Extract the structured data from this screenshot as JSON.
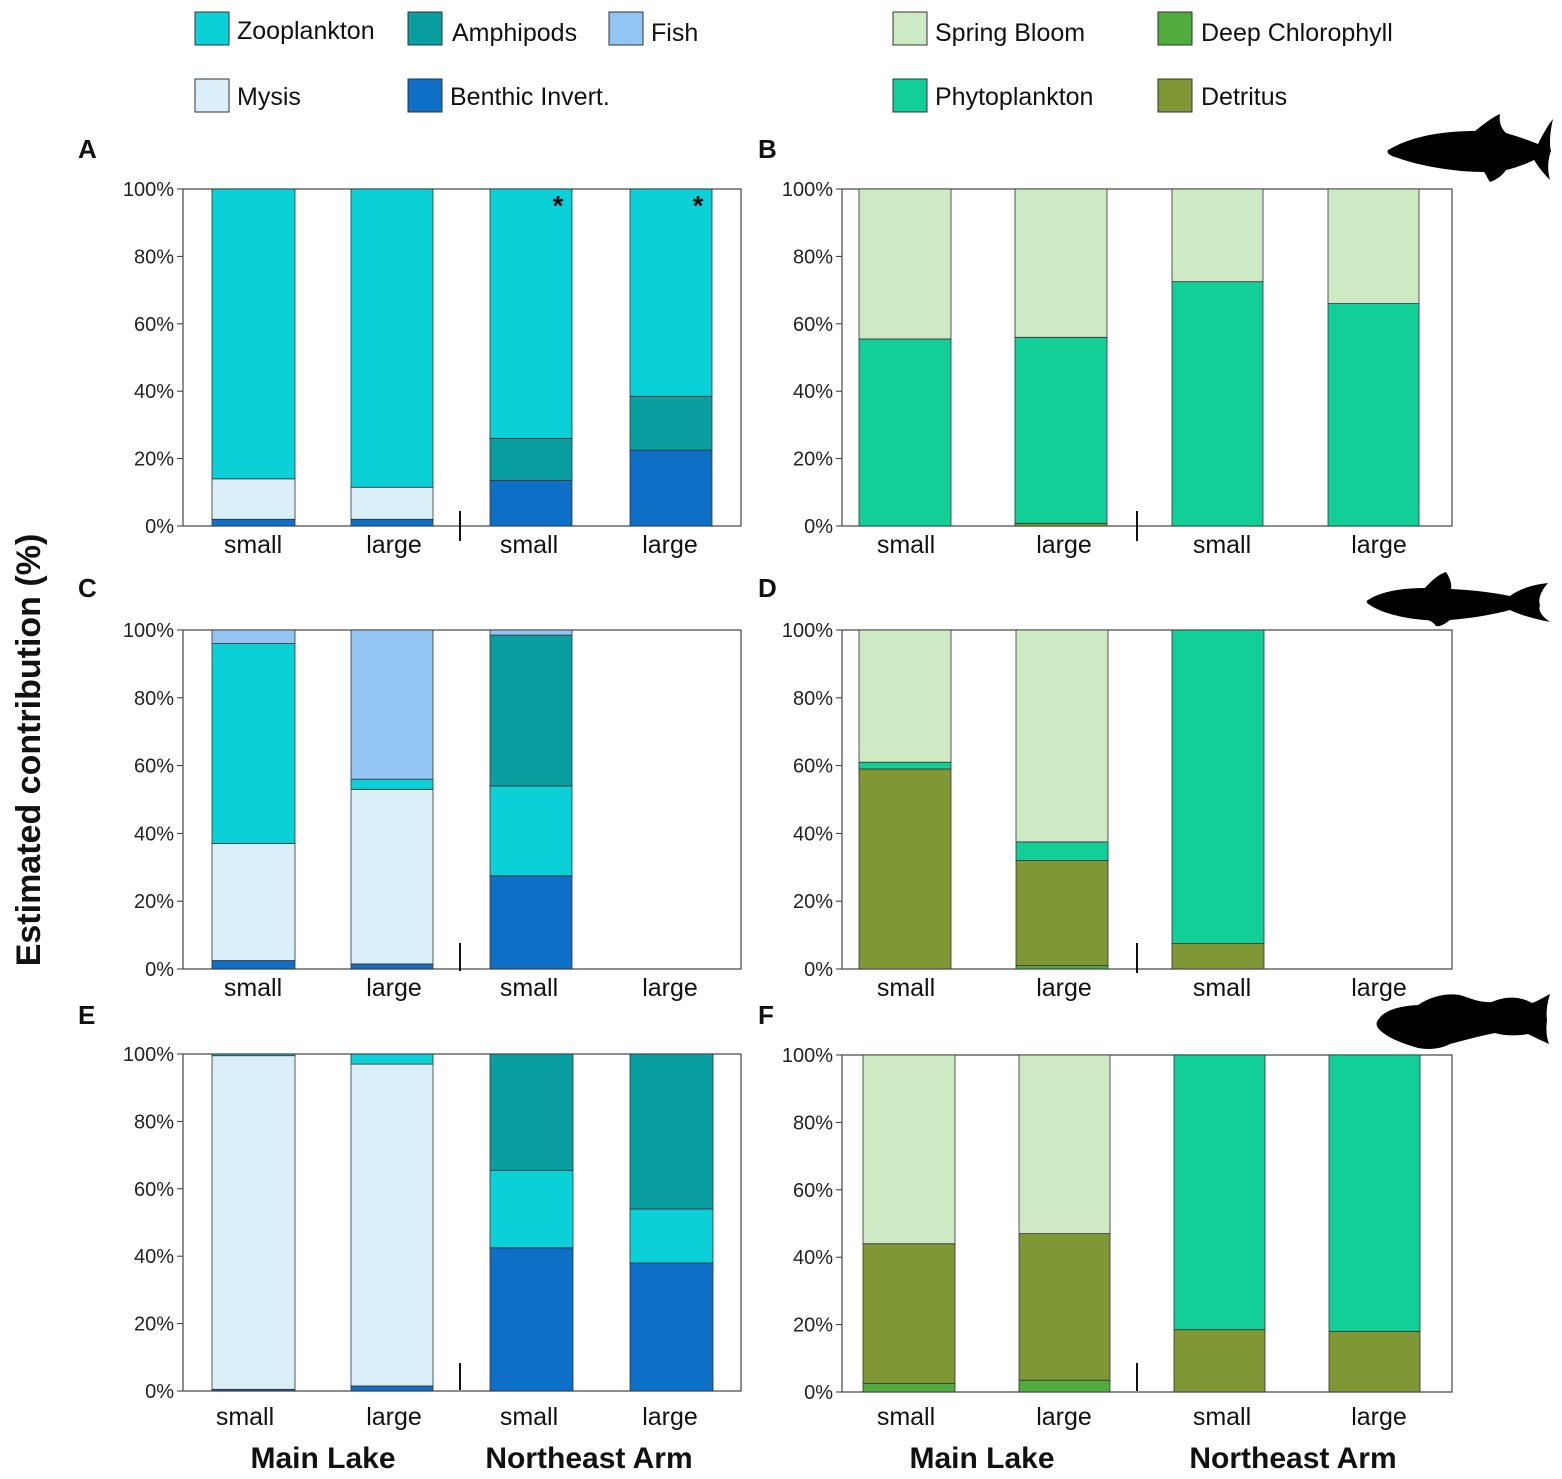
{
  "chart_data": {
    "type": "bar",
    "stacked": true,
    "ylabel": "Estimated contribution (%)",
    "ytick_labels": [
      "0%",
      "20%",
      "40%",
      "60%",
      "80%",
      "100%"
    ],
    "ylim": [
      0,
      100
    ],
    "group_labels": [
      "Main Lake",
      "Northeast Arm"
    ],
    "categories": [
      "small",
      "large",
      "small",
      "large"
    ],
    "colors": {
      "Zooplankton": "#0cd0d8",
      "Amphipods": "#099ea0",
      "Fish": "#93c5f3",
      "Mysis": "#daeff8",
      "Benthic Invert.": "#0e6fc6",
      "Spring Bloom": "#cdeac4",
      "Deep Chlorophyll": "#4fac3d",
      "Phytoplankton": "#12cf98",
      "Detritus": "#7f9734"
    },
    "legend_prey": [
      "Zooplankton",
      "Amphipods",
      "Fish",
      "Mysis",
      "Benthic Invert."
    ],
    "legend_source": [
      "Spring Bloom",
      "Deep Chlorophyll",
      "Phytoplankton",
      "Detritus"
    ],
    "panels": [
      {
        "id": "A",
        "kind": "prey",
        "bars": [
          {
            "label": "small",
            "stack": [
              [
                "Benthic Invert.",
                2
              ],
              [
                "Mysis",
                12
              ],
              [
                "Zooplankton",
                86
              ]
            ]
          },
          {
            "label": "large",
            "stack": [
              [
                "Benthic Invert.",
                2
              ],
              [
                "Mysis",
                9.5
              ],
              [
                "Zooplankton",
                88.5
              ]
            ]
          },
          {
            "label": "small",
            "stack": [
              [
                "Benthic Invert.",
                13.5
              ],
              [
                "Amphipods",
                12.5
              ],
              [
                "Zooplankton",
                74
              ]
            ],
            "annotation": "*"
          },
          {
            "label": "large",
            "stack": [
              [
                "Benthic Invert.",
                22.5
              ],
              [
                "Amphipods",
                16
              ],
              [
                "Zooplankton",
                61.5
              ]
            ],
            "annotation": "*"
          }
        ]
      },
      {
        "id": "B",
        "kind": "source",
        "bars": [
          {
            "label": "small",
            "stack": [
              [
                "Phytoplankton",
                55.5
              ],
              [
                "Spring Bloom",
                44.5
              ]
            ]
          },
          {
            "label": "large",
            "stack": [
              [
                "Detritus",
                0.8
              ],
              [
                "Phytoplankton",
                55.2
              ],
              [
                "Spring Bloom",
                44
              ]
            ]
          },
          {
            "label": "small",
            "stack": [
              [
                "Phytoplankton",
                72.5
              ],
              [
                "Spring Bloom",
                27.5
              ]
            ]
          },
          {
            "label": "large",
            "stack": [
              [
                "Phytoplankton",
                66
              ],
              [
                "Spring Bloom",
                34
              ]
            ]
          }
        ]
      },
      {
        "id": "C",
        "kind": "prey",
        "bars": [
          {
            "label": "small",
            "stack": [
              [
                "Benthic Invert.",
                2.5
              ],
              [
                "Mysis",
                34.5
              ],
              [
                "Zooplankton",
                59
              ],
              [
                "Fish",
                4
              ]
            ]
          },
          {
            "label": "large",
            "stack": [
              [
                "Benthic Invert.",
                1.5
              ],
              [
                "Mysis",
                51.5
              ],
              [
                "Zooplankton",
                3
              ],
              [
                "Fish",
                44
              ]
            ]
          },
          {
            "label": "small",
            "stack": [
              [
                "Benthic Invert.",
                27.5
              ],
              [
                "Zooplankton",
                26.5
              ],
              [
                "Amphipods",
                44.5
              ],
              [
                "Fish",
                1.5
              ]
            ]
          },
          {
            "label": "large",
            "stack": []
          }
        ]
      },
      {
        "id": "D",
        "kind": "source",
        "bars": [
          {
            "label": "small",
            "stack": [
              [
                "Detritus",
                59
              ],
              [
                "Phytoplankton",
                2
              ],
              [
                "Spring Bloom",
                39
              ]
            ]
          },
          {
            "label": "large",
            "stack": [
              [
                "Deep Chlorophyll",
                1
              ],
              [
                "Detritus",
                31
              ],
              [
                "Phytoplankton",
                5.5
              ],
              [
                "Spring Bloom",
                62.5
              ]
            ]
          },
          {
            "label": "small",
            "stack": [
              [
                "Detritus",
                7.5
              ],
              [
                "Phytoplankton",
                92.5
              ]
            ]
          },
          {
            "label": "large",
            "stack": []
          }
        ]
      },
      {
        "id": "E",
        "kind": "prey",
        "bars": [
          {
            "label": "small",
            "stack": [
              [
                "Benthic Invert.",
                0.5
              ],
              [
                "Mysis",
                99
              ],
              [
                "Zooplankton",
                0.5
              ]
            ]
          },
          {
            "label": "large",
            "stack": [
              [
                "Benthic Invert.",
                1.5
              ],
              [
                "Mysis",
                95.5
              ],
              [
                "Zooplankton",
                3
              ]
            ]
          },
          {
            "label": "small",
            "stack": [
              [
                "Benthic Invert.",
                42.5
              ],
              [
                "Zooplankton",
                23
              ],
              [
                "Amphipods",
                34.5
              ]
            ]
          },
          {
            "label": "large",
            "stack": [
              [
                "Benthic Invert.",
                38
              ],
              [
                "Zooplankton",
                16
              ],
              [
                "Amphipods",
                46
              ]
            ]
          }
        ]
      },
      {
        "id": "F",
        "kind": "source",
        "bars": [
          {
            "label": "small",
            "stack": [
              [
                "Deep Chlorophyll",
                2.5
              ],
              [
                "Detritus",
                41.5
              ],
              [
                "Spring Bloom",
                56
              ]
            ]
          },
          {
            "label": "large",
            "stack": [
              [
                "Deep Chlorophyll",
                3.5
              ],
              [
                "Detritus",
                43.5
              ],
              [
                "Spring Bloom",
                53
              ]
            ]
          },
          {
            "label": "small",
            "stack": [
              [
                "Detritus",
                18.5
              ],
              [
                "Phytoplankton",
                81.5
              ]
            ]
          },
          {
            "label": "large",
            "stack": [
              [
                "Detritus",
                18
              ],
              [
                "Phytoplankton",
                82
              ]
            ]
          }
        ]
      }
    ]
  },
  "silhouettes": [
    "herring-silhouette-icon",
    "smelt-silhouette-icon",
    "sculpin-silhouette-icon"
  ]
}
